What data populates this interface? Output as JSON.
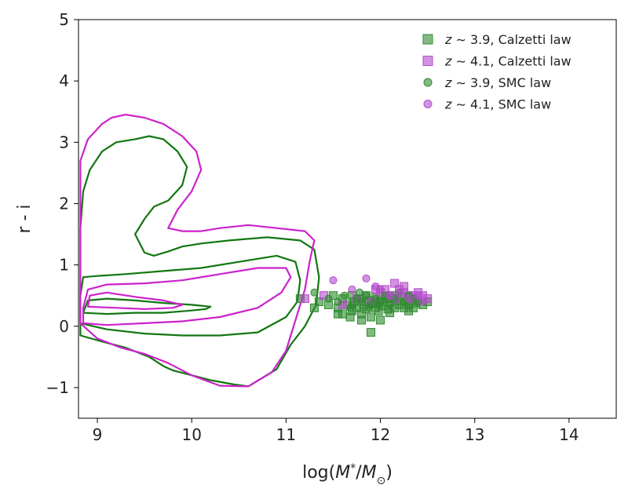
{
  "chart_data": {
    "type": "scatter",
    "xlabel": "log(M*/M⊙)",
    "ylabel": "r - i",
    "xlim": [
      8.8,
      14.5
    ],
    "ylim": [
      -1.5,
      5
    ],
    "xticks": [
      9,
      10,
      11,
      12,
      13,
      14
    ],
    "yticks": [
      -1,
      0,
      1,
      2,
      3,
      4,
      5
    ],
    "ytick_labels": [
      "−1",
      "0",
      "1",
      "2",
      "3",
      "4",
      "5"
    ],
    "legend_position": "top-right",
    "colors": {
      "green": "#1a7a1a",
      "magenta": "#cc33cc",
      "green_contour": "#117711",
      "magenta_contour": "#cc22cc"
    },
    "series": [
      {
        "name": "z ~ 3.9, Calzetti law",
        "legend_z": "z",
        "legend_rest": " ∼ 3.9, Calzetti law",
        "marker": "square",
        "color": "#2e8b2e",
        "x": [
          11.15,
          11.3,
          11.35,
          11.45,
          11.5,
          11.55,
          11.6,
          11.6,
          11.65,
          11.7,
          11.7,
          11.72,
          11.75,
          11.78,
          11.8,
          11.82,
          11.85,
          11.85,
          11.88,
          11.9,
          11.92,
          11.95,
          11.95,
          11.98,
          12.0,
          12.02,
          12.05,
          12.08,
          12.1,
          12.12,
          12.15,
          12.18,
          12.2,
          12.22,
          12.25,
          12.28,
          12.3,
          12.32,
          12.35,
          12.38,
          12.4,
          12.45,
          12.5,
          11.9,
          12.0,
          11.55,
          11.68,
          11.8,
          12.1,
          12.3
        ],
        "y": [
          0.45,
          0.3,
          0.4,
          0.35,
          0.5,
          0.3,
          0.45,
          0.2,
          0.35,
          0.5,
          0.25,
          0.4,
          0.3,
          0.45,
          0.2,
          0.35,
          0.5,
          0.28,
          0.42,
          0.15,
          0.38,
          0.3,
          0.48,
          0.25,
          0.4,
          0.33,
          0.45,
          0.28,
          0.38,
          0.5,
          0.3,
          0.42,
          0.35,
          0.48,
          0.3,
          0.4,
          0.35,
          0.45,
          0.3,
          0.38,
          0.42,
          0.35,
          0.4,
          -0.1,
          0.1,
          0.2,
          0.15,
          0.1,
          0.22,
          0.25
        ]
      },
      {
        "name": "z ~ 4.1, Calzetti law",
        "legend_z": "z",
        "legend_rest": " ∼ 4.1, Calzetti law",
        "marker": "square",
        "color": "#b44ccc",
        "x": [
          11.2,
          11.4,
          11.6,
          11.75,
          11.9,
          12.0,
          12.05,
          12.1,
          12.15,
          12.2,
          12.25,
          12.3,
          12.35,
          12.4,
          12.45,
          12.5,
          12.15,
          12.25,
          11.95,
          12.35
        ],
        "y": [
          0.45,
          0.5,
          0.35,
          0.45,
          0.4,
          0.55,
          0.6,
          0.5,
          0.45,
          0.6,
          0.55,
          0.5,
          0.45,
          0.55,
          0.5,
          0.45,
          0.7,
          0.65,
          0.6,
          0.5
        ]
      },
      {
        "name": "z ~ 3.9, SMC law",
        "legend_z": "z",
        "legend_rest": " ∼ 3.9, SMC law",
        "marker": "circle",
        "color": "#2e8b2e",
        "x": [
          11.3,
          11.45,
          11.55,
          11.62,
          11.7,
          11.75,
          11.8,
          11.85,
          11.9,
          11.95,
          12.0,
          12.05,
          12.1,
          12.15,
          12.2,
          12.25,
          12.3,
          12.35,
          12.4,
          11.68,
          11.78,
          11.88,
          11.98,
          12.08
        ],
        "y": [
          0.55,
          0.45,
          0.4,
          0.5,
          0.35,
          0.45,
          0.4,
          0.5,
          0.35,
          0.45,
          0.4,
          0.5,
          0.35,
          0.45,
          0.55,
          0.4,
          0.5,
          0.45,
          0.4,
          0.3,
          0.55,
          0.3,
          0.35,
          0.45
        ]
      },
      {
        "name": "z ~ 4.1, SMC law",
        "legend_z": "z",
        "legend_rest": " ∼ 4.1, SMC law",
        "marker": "circle",
        "color": "#b44ccc",
        "x": [
          11.5,
          11.7,
          11.85,
          12.0,
          12.1,
          12.2,
          12.3,
          12.4,
          12.45,
          11.95
        ],
        "y": [
          0.75,
          0.6,
          0.78,
          0.6,
          0.5,
          0.55,
          0.45,
          0.5,
          0.4,
          0.65
        ]
      }
    ],
    "contours": [
      {
        "name": "green-outer",
        "color": "#117711",
        "points": [
          [
            8.82,
            -0.15
          ],
          [
            9.05,
            -0.25
          ],
          [
            9.3,
            -0.35
          ],
          [
            9.55,
            -0.5
          ],
          [
            9.7,
            -0.65
          ],
          [
            9.8,
            -0.72
          ],
          [
            9.95,
            -0.78
          ],
          [
            10.2,
            -0.88
          ],
          [
            10.45,
            -0.95
          ],
          [
            10.6,
            -0.98
          ],
          [
            10.9,
            -0.7
          ],
          [
            11.05,
            -0.3
          ],
          [
            11.2,
            0.0
          ],
          [
            11.32,
            0.35
          ],
          [
            11.35,
            0.8
          ],
          [
            11.3,
            1.25
          ],
          [
            11.15,
            1.4
          ],
          [
            10.8,
            1.45
          ],
          [
            10.4,
            1.4
          ],
          [
            10.1,
            1.35
          ],
          [
            9.9,
            1.3
          ],
          [
            9.75,
            1.22
          ],
          [
            9.6,
            1.15
          ],
          [
            9.5,
            1.2
          ],
          [
            9.4,
            1.5
          ],
          [
            9.5,
            1.75
          ],
          [
            9.6,
            1.95
          ],
          [
            9.75,
            2.05
          ],
          [
            9.9,
            2.3
          ],
          [
            9.95,
            2.6
          ],
          [
            9.85,
            2.85
          ],
          [
            9.7,
            3.05
          ],
          [
            9.55,
            3.1
          ],
          [
            9.4,
            3.05
          ],
          [
            9.2,
            3.0
          ],
          [
            9.05,
            2.85
          ],
          [
            8.92,
            2.55
          ],
          [
            8.85,
            2.2
          ],
          [
            8.82,
            1.6
          ],
          [
            8.82,
            0.6
          ],
          [
            8.82,
            -0.15
          ]
        ]
      },
      {
        "name": "green-middle",
        "color": "#117711",
        "points": [
          [
            8.82,
            0.05
          ],
          [
            9.1,
            -0.05
          ],
          [
            9.5,
            -0.12
          ],
          [
            9.9,
            -0.15
          ],
          [
            10.3,
            -0.15
          ],
          [
            10.7,
            -0.1
          ],
          [
            11.0,
            0.15
          ],
          [
            11.12,
            0.4
          ],
          [
            11.15,
            0.75
          ],
          [
            11.1,
            1.05
          ],
          [
            10.9,
            1.15
          ],
          [
            10.5,
            1.05
          ],
          [
            10.1,
            0.95
          ],
          [
            9.7,
            0.9
          ],
          [
            9.3,
            0.85
          ],
          [
            9.0,
            0.82
          ],
          [
            8.85,
            0.8
          ],
          [
            8.82,
            0.5
          ],
          [
            8.82,
            0.05
          ]
        ]
      },
      {
        "name": "green-inner",
        "color": "#117711",
        "points": [
          [
            8.85,
            0.22
          ],
          [
            9.1,
            0.2
          ],
          [
            9.4,
            0.22
          ],
          [
            9.7,
            0.22
          ],
          [
            9.95,
            0.25
          ],
          [
            10.15,
            0.28
          ],
          [
            10.2,
            0.32
          ],
          [
            10.0,
            0.35
          ],
          [
            9.7,
            0.38
          ],
          [
            9.4,
            0.42
          ],
          [
            9.1,
            0.45
          ],
          [
            8.9,
            0.42
          ],
          [
            8.85,
            0.22
          ]
        ]
      },
      {
        "name": "magenta-outer",
        "color": "#cc22cc",
        "points": [
          [
            8.82,
            0.05
          ],
          [
            9.0,
            -0.2
          ],
          [
            9.25,
            -0.35
          ],
          [
            9.5,
            -0.45
          ],
          [
            9.75,
            -0.6
          ],
          [
            10.0,
            -0.8
          ],
          [
            10.3,
            -0.97
          ],
          [
            10.6,
            -0.98
          ],
          [
            10.85,
            -0.75
          ],
          [
            11.0,
            -0.4
          ],
          [
            11.1,
            0.1
          ],
          [
            11.2,
            0.6
          ],
          [
            11.25,
            1.05
          ],
          [
            11.3,
            1.4
          ],
          [
            11.2,
            1.55
          ],
          [
            10.9,
            1.6
          ],
          [
            10.6,
            1.65
          ],
          [
            10.3,
            1.6
          ],
          [
            10.1,
            1.55
          ],
          [
            9.9,
            1.55
          ],
          [
            9.75,
            1.6
          ],
          [
            9.85,
            1.9
          ],
          [
            10.0,
            2.2
          ],
          [
            10.1,
            2.55
          ],
          [
            10.05,
            2.85
          ],
          [
            9.9,
            3.1
          ],
          [
            9.7,
            3.3
          ],
          [
            9.5,
            3.4
          ],
          [
            9.3,
            3.45
          ],
          [
            9.15,
            3.4
          ],
          [
            9.05,
            3.3
          ],
          [
            8.9,
            3.05
          ],
          [
            8.82,
            2.7
          ],
          [
            8.82,
            1.3
          ],
          [
            8.82,
            0.05
          ]
        ]
      },
      {
        "name": "magenta-middle",
        "color": "#cc22cc",
        "points": [
          [
            8.85,
            0.05
          ],
          [
            9.1,
            0.02
          ],
          [
            9.5,
            0.05
          ],
          [
            9.9,
            0.08
          ],
          [
            10.3,
            0.15
          ],
          [
            10.7,
            0.3
          ],
          [
            10.95,
            0.55
          ],
          [
            11.05,
            0.8
          ],
          [
            11.0,
            0.95
          ],
          [
            10.7,
            0.95
          ],
          [
            10.3,
            0.85
          ],
          [
            9.9,
            0.75
          ],
          [
            9.5,
            0.7
          ],
          [
            9.1,
            0.68
          ],
          [
            8.9,
            0.6
          ],
          [
            8.85,
            0.3
          ],
          [
            8.85,
            0.05
          ]
        ]
      },
      {
        "name": "magenta-inner",
        "color": "#cc22cc",
        "points": [
          [
            8.9,
            0.32
          ],
          [
            9.2,
            0.3
          ],
          [
            9.5,
            0.28
          ],
          [
            9.8,
            0.3
          ],
          [
            9.9,
            0.35
          ],
          [
            9.7,
            0.42
          ],
          [
            9.4,
            0.48
          ],
          [
            9.1,
            0.55
          ],
          [
            8.92,
            0.5
          ],
          [
            8.9,
            0.32
          ]
        ]
      }
    ]
  }
}
